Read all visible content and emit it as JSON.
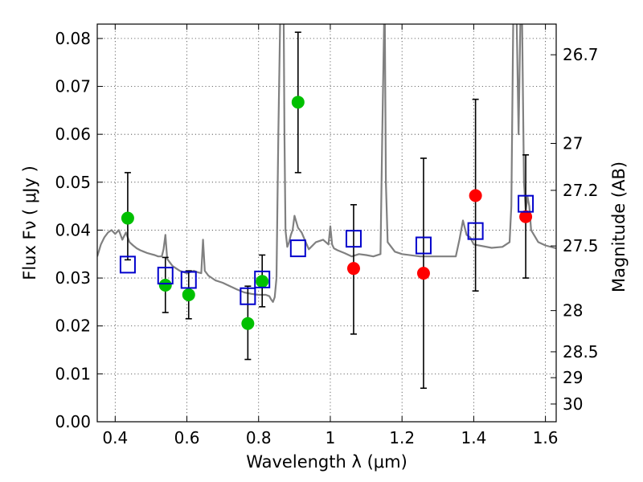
{
  "chart_data": {
    "type": "scatter",
    "xlabel": "Wavelength  λ (μm)",
    "ylabel": "Flux  Fν  ( μJy )",
    "y2label": "Magnitude (AB)",
    "xlim": [
      0.35,
      1.63
    ],
    "ylim": [
      0.0,
      0.083
    ],
    "x_ticks": [
      0.4,
      0.6,
      0.8,
      1.0,
      1.2,
      1.4,
      1.6
    ],
    "x_tick_labels": [
      "0.4",
      "0.6",
      "0.8",
      "1",
      "1.2",
      "1.4",
      "1.6"
    ],
    "y_ticks": [
      0.0,
      0.01,
      0.02,
      0.03,
      0.04,
      0.05,
      0.06,
      0.07,
      0.08
    ],
    "y_tick_labels": [
      "0.00",
      "0.01",
      "0.02",
      "0.03",
      "0.04",
      "0.05",
      "0.06",
      "0.07",
      "0.08"
    ],
    "magnitude_ticks": [
      {
        "label": "26.7",
        "flux": 0.0766
      },
      {
        "label": "27",
        "flux": 0.0581
      },
      {
        "label": "27.2",
        "flux": 0.0483
      },
      {
        "label": "27.5",
        "flux": 0.0367
      },
      {
        "label": "28",
        "flux": 0.0232
      },
      {
        "label": "28.5",
        "flux": 0.0146
      },
      {
        "label": "29",
        "flux": 0.0092
      },
      {
        "label": "30",
        "flux": 0.0037
      }
    ],
    "series": [
      {
        "name": "model-spectrum",
        "kind": "line",
        "color": "#808080",
        "x": [
          0.35,
          0.36,
          0.37,
          0.38,
          0.39,
          0.4,
          0.41,
          0.42,
          0.43,
          0.44,
          0.45,
          0.46,
          0.47,
          0.48,
          0.49,
          0.5,
          0.51,
          0.52,
          0.53,
          0.535,
          0.54,
          0.545,
          0.55,
          0.56,
          0.58,
          0.6,
          0.62,
          0.63,
          0.64,
          0.645,
          0.65,
          0.66,
          0.68,
          0.7,
          0.72,
          0.74,
          0.76,
          0.78,
          0.8,
          0.82,
          0.83,
          0.835,
          0.84,
          0.845,
          0.85,
          0.855,
          0.86,
          0.862,
          0.864,
          0.866,
          0.868,
          0.87,
          0.872,
          0.875,
          0.88,
          0.885,
          0.89,
          0.895,
          0.9,
          0.91,
          0.92,
          0.94,
          0.96,
          0.98,
          0.995,
          1.0,
          1.005,
          1.01,
          1.02,
          1.04,
          1.06,
          1.08,
          1.1,
          1.12,
          1.14,
          1.145,
          1.15,
          1.152,
          1.155,
          1.16,
          1.18,
          1.2,
          1.25,
          1.3,
          1.35,
          1.36,
          1.37,
          1.38,
          1.39,
          1.4,
          1.45,
          1.48,
          1.5,
          1.505,
          1.51,
          1.52,
          1.525,
          1.53,
          1.535,
          1.54,
          1.545,
          1.55,
          1.555,
          1.56,
          1.58,
          1.6,
          1.63
        ],
        "y": [
          0.0345,
          0.037,
          0.0385,
          0.0395,
          0.04,
          0.0392,
          0.04,
          0.038,
          0.0395,
          0.0375,
          0.0368,
          0.0362,
          0.0358,
          0.0355,
          0.0352,
          0.035,
          0.0348,
          0.0345,
          0.0345,
          0.036,
          0.039,
          0.034,
          0.0335,
          0.0325,
          0.0315,
          0.031,
          0.0315,
          0.0312,
          0.031,
          0.038,
          0.0315,
          0.0305,
          0.0295,
          0.029,
          0.0283,
          0.0276,
          0.027,
          0.0267,
          0.0265,
          0.0265,
          0.0262,
          0.0255,
          0.025,
          0.026,
          0.03,
          0.06,
          0.0831,
          0.0831,
          0.0831,
          0.0831,
          0.0831,
          0.0831,
          0.06,
          0.04,
          0.0365,
          0.0375,
          0.039,
          0.04,
          0.043,
          0.0405,
          0.0395,
          0.036,
          0.0375,
          0.038,
          0.037,
          0.0408,
          0.037,
          0.0362,
          0.0358,
          0.0352,
          0.0345,
          0.035,
          0.0348,
          0.0345,
          0.035,
          0.06,
          0.0831,
          0.0831,
          0.05,
          0.0375,
          0.0355,
          0.035,
          0.0345,
          0.0345,
          0.0345,
          0.038,
          0.042,
          0.039,
          0.0385,
          0.037,
          0.0363,
          0.0365,
          0.0375,
          0.045,
          0.0831,
          0.0831,
          0.06,
          0.0831,
          0.0831,
          0.05,
          0.044,
          0.047,
          0.045,
          0.04,
          0.0375,
          0.0368,
          0.0362
        ]
      },
      {
        "name": "observed-blue-green",
        "kind": "points",
        "marker": "circle",
        "color": "#00c000",
        "x": [
          0.435,
          0.54,
          0.605,
          0.77,
          0.81,
          0.91
        ],
        "y": [
          0.0425,
          0.0285,
          0.0265,
          0.0205,
          0.0293,
          0.0667
        ],
        "err_low": [
          0.0338,
          0.0228,
          0.0215,
          0.013,
          0.024,
          0.052
        ],
        "err_high": [
          0.052,
          0.0343,
          0.0315,
          0.0283,
          0.0348,
          0.0813
        ]
      },
      {
        "name": "observed-red",
        "kind": "points",
        "marker": "circle",
        "color": "#ff0000",
        "x": [
          1.065,
          1.26,
          1.405,
          1.545
        ],
        "y": [
          0.032,
          0.031,
          0.0472,
          0.0428
        ],
        "err_low": [
          0.0183,
          0.007,
          0.0273,
          0.03
        ],
        "err_high": [
          0.0453,
          0.055,
          0.0673,
          0.0557
        ]
      },
      {
        "name": "model-photometry",
        "kind": "points",
        "marker": "open-square",
        "color": "#0000cc",
        "x": [
          0.435,
          0.54,
          0.605,
          0.77,
          0.81,
          0.91,
          1.065,
          1.26,
          1.405,
          1.545
        ],
        "y": [
          0.0328,
          0.0305,
          0.0296,
          0.0262,
          0.0297,
          0.0362,
          0.0382,
          0.0368,
          0.0398,
          0.0455
        ]
      }
    ]
  }
}
